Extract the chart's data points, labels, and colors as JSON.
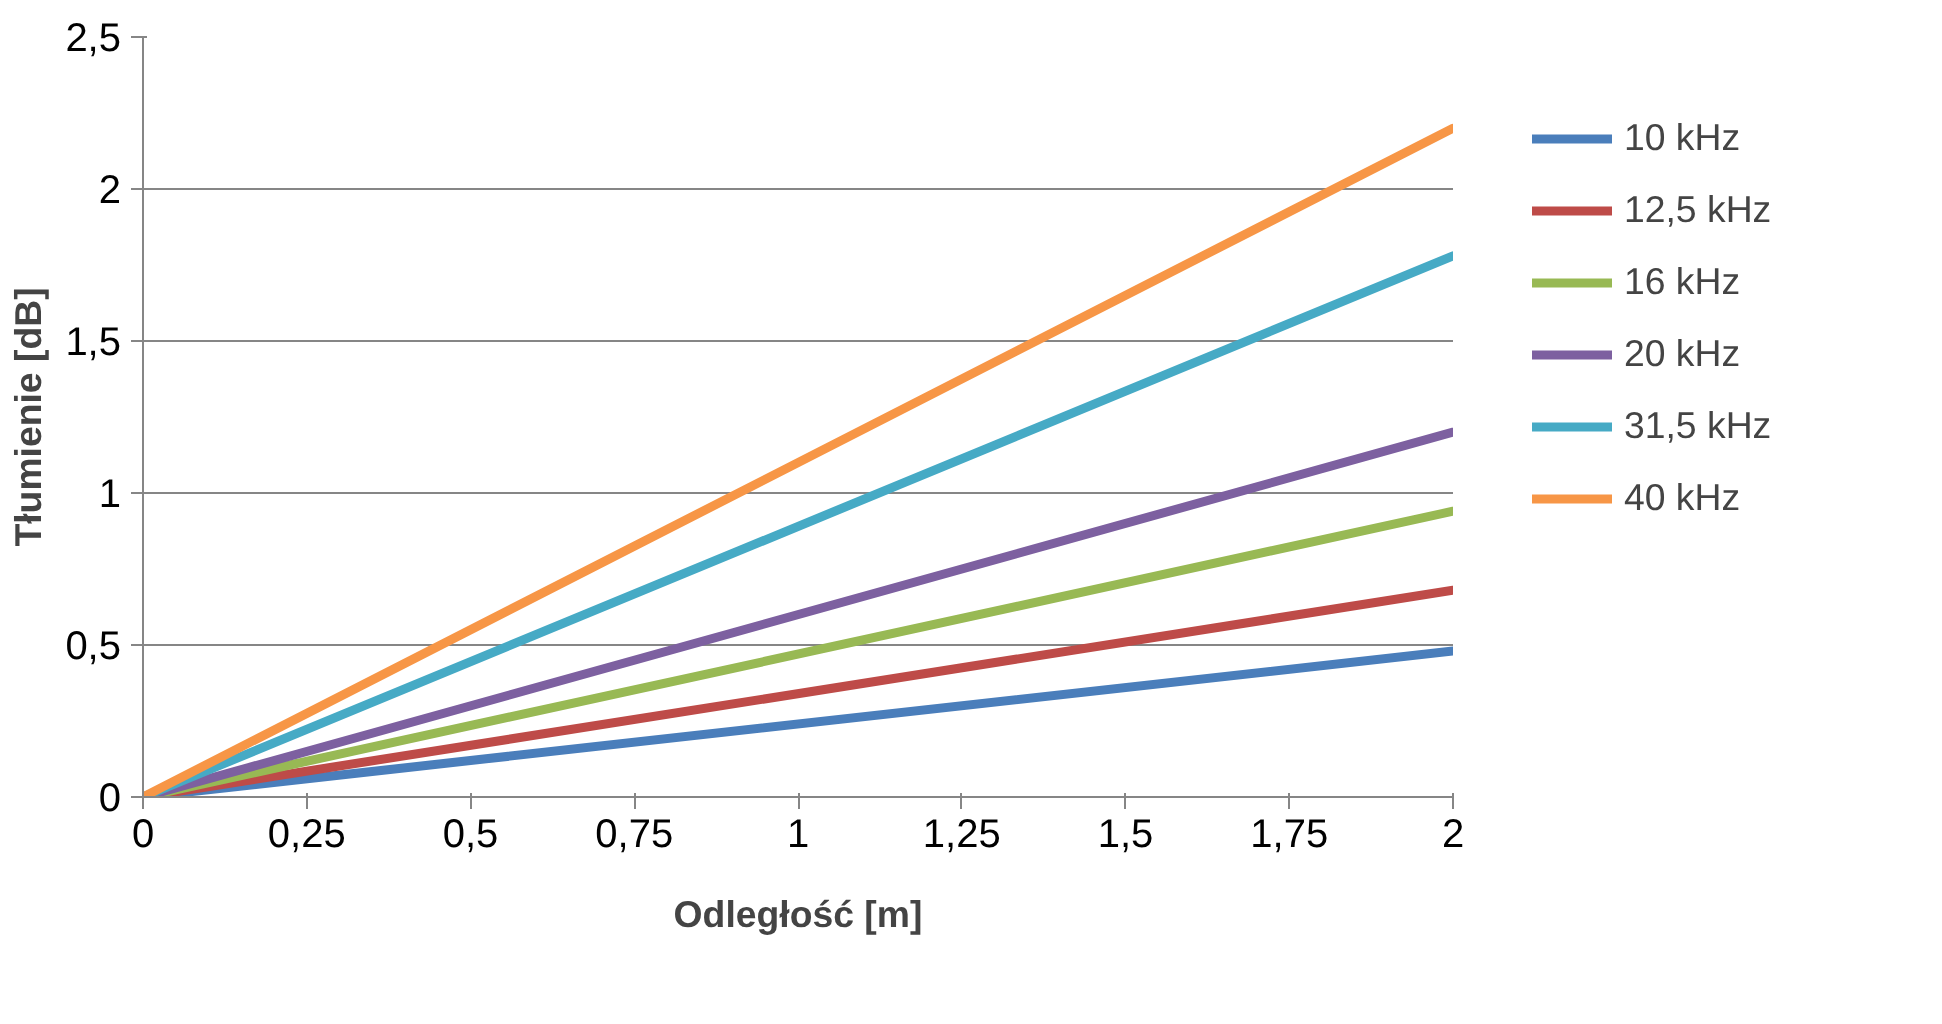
{
  "chart_data": {
    "type": "line",
    "xlabel": "Odległość [m]",
    "ylabel": "Tłumienie [dB]",
    "x": [
      0,
      2
    ],
    "series": [
      {
        "name": "10 kHz",
        "color": "#4a7ebb",
        "values": [
          0,
          0.48
        ]
      },
      {
        "name": "12,5 kHz",
        "color": "#be4b48",
        "values": [
          0,
          0.68
        ]
      },
      {
        "name": "16 kHz",
        "color": "#98b954",
        "values": [
          0,
          0.94
        ]
      },
      {
        "name": "20 kHz",
        "color": "#7d60a0",
        "values": [
          0,
          1.2
        ]
      },
      {
        "name": "31,5 kHz",
        "color": "#46aac5",
        "values": [
          0,
          1.78
        ]
      },
      {
        "name": "40 kHz",
        "color": "#f79646",
        "values": [
          0,
          2.2
        ]
      }
    ],
    "xlim": [
      0,
      2
    ],
    "ylim": [
      0,
      2.5
    ],
    "xticks": [
      0,
      {
        "value": 0.25,
        "label": "0,25"
      },
      {
        "value": 0.5,
        "label": "0,5"
      },
      {
        "value": 0.75,
        "label": "0,75"
      },
      1,
      {
        "value": 1.25,
        "label": "1,25"
      },
      {
        "value": 1.5,
        "label": "1,5"
      },
      {
        "value": 1.75,
        "label": "1,75"
      },
      2
    ],
    "yticks": [
      0,
      {
        "value": 0.5,
        "label": "0,5"
      },
      1,
      {
        "value": 1.5,
        "label": "1,5"
      },
      2,
      {
        "value": 2.5,
        "label": "2,5"
      }
    ],
    "grid": "y",
    "legend": "right",
    "marker": "none",
    "line_style": "solid"
  }
}
